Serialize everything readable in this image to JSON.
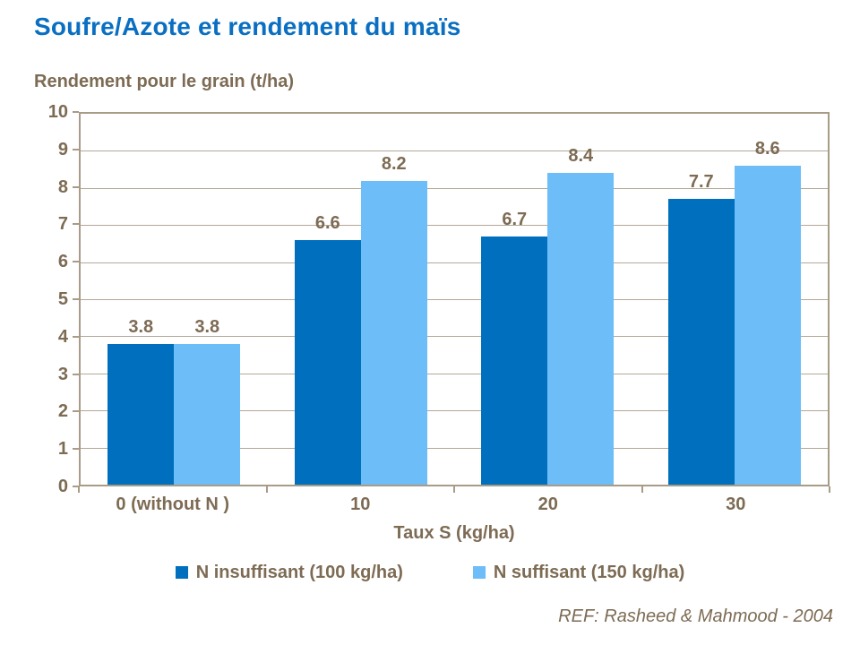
{
  "slide": {
    "title": "Soufre/Azote et rendement du maïs",
    "reference": "REF: Rasheed & Mahmood - 2004"
  },
  "colors": {
    "title": "#0a6fc2",
    "text": "#7d6b54",
    "gridline": "#b3a897",
    "frame": "#a89b87",
    "series1": "#0070be",
    "series2": "#6cbdf8",
    "background": "#ffffff"
  },
  "chart_data": {
    "type": "bar",
    "title": "Soufre/Azote et rendement du maïs",
    "categories": [
      "0 (without N )",
      "10",
      "20",
      "30"
    ],
    "series": [
      {
        "name": "N insuffisant (100 kg/ha)",
        "color": "#0070be",
        "values": [
          3.8,
          6.6,
          6.7,
          7.7
        ]
      },
      {
        "name": "N suffisant (150 kg/ha)",
        "color": "#6cbdf8",
        "values": [
          3.8,
          8.2,
          8.4,
          8.6
        ]
      }
    ],
    "xlabel": "Taux S (kg/ha)",
    "ylabel": "Rendement pour le grain (t/ha)",
    "ylim": [
      0,
      10
    ],
    "ytick_step": 1,
    "grid": true,
    "legend_position": "bottom",
    "data_labels": true,
    "reference": "REF: Rasheed & Mahmood - 2004"
  }
}
